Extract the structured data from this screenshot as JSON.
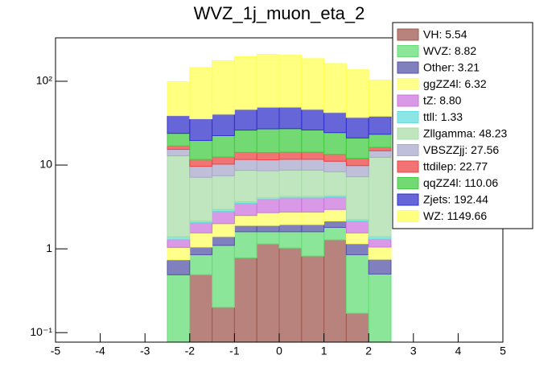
{
  "chart_data": {
    "type": "stacked-histogram",
    "title": "WVZ_1j_muon_eta_2",
    "bins": [
      -2.5,
      -2,
      -1.5,
      -1,
      -0.5,
      0,
      0.5,
      1,
      1.5,
      2,
      2.5
    ],
    "series": [
      {
        "name": "VH: 5.54",
        "color": "#a05a50",
        "values": [
          0,
          0.49,
          0.2,
          0.78,
          1.14,
          1.02,
          0.82,
          1.28,
          0.17,
          0
        ]
      },
      {
        "name": "WVZ: 8.82",
        "color": "#66dd77",
        "values": [
          0.49,
          0.36,
          0.9,
          0.82,
          0.46,
          0.58,
          0.78,
          0.52,
          0.68,
          0.5
        ]
      },
      {
        "name": "Other: 3.21",
        "color": "#5555aa",
        "values": [
          0.25,
          0.2,
          0.3,
          0.3,
          0.3,
          0.35,
          0.35,
          0.35,
          0.3,
          0.25
        ]
      },
      {
        "name": "ggZZ4l: 6.32",
        "color": "#ffff66",
        "values": [
          0.3,
          0.5,
          0.6,
          0.6,
          0.8,
          0.8,
          0.8,
          0.8,
          0.4,
          0.3
        ]
      },
      {
        "name": "tZ: 8.80",
        "color": "#cc77dd",
        "values": [
          0.25,
          0.5,
          0.8,
          1.0,
          1.2,
          1.3,
          1.3,
          1.2,
          0.6,
          0.25
        ]
      },
      {
        "name": "ttll: 1.33",
        "color": "#66dddd",
        "values": [
          0.1,
          0.1,
          0.15,
          0.15,
          0.15,
          0.15,
          0.15,
          0.15,
          0.1,
          0.1
        ]
      },
      {
        "name": "Zllgamma: 48.23",
        "color": "#aaddaa",
        "values": [
          11.5,
          5,
          4.5,
          5,
          4.5,
          4.5,
          4.5,
          4,
          5,
          11
        ]
      },
      {
        "name": "VBSZZjj: 27.56",
        "color": "#aaaacc",
        "values": [
          2.5,
          2.5,
          2.8,
          3.0,
          3.0,
          3.0,
          3.0,
          2.8,
          2.6,
          2.4
        ]
      },
      {
        "name": "ttdilep: 22.77",
        "color": "#ee4444",
        "values": [
          1.5,
          2,
          2.2,
          2.5,
          2.5,
          2.5,
          2.5,
          2.3,
          2.2,
          1.5
        ]
      },
      {
        "name": "qqZZ4l: 110.06",
        "color": "#44cc44",
        "values": [
          7,
          8,
          10,
          12,
          13,
          13,
          12,
          11,
          9,
          7
        ]
      },
      {
        "name": "Zjets: 192.44",
        "color": "#3333cc",
        "values": [
          15,
          16,
          18,
          20,
          22,
          22,
          20,
          18,
          16,
          15
        ]
      },
      {
        "name": "WZ: 1149.66",
        "color": "#ffff55",
        "values": [
          60,
          110,
          135,
          150,
          160,
          155,
          140,
          120,
          100,
          65
        ]
      }
    ],
    "xlim": [
      -5,
      5
    ],
    "xticks": [
      -5,
      -4,
      -3,
      -2,
      -1,
      0,
      1,
      2,
      3,
      4,
      5
    ],
    "ylim": [
      0.077,
      330
    ],
    "log_y": true,
    "yticks": [
      {
        "value": 0.1,
        "label": "10⁻¹"
      },
      1,
      10,
      {
        "value": 100,
        "label": "10²"
      }
    ],
    "legend": "top-right"
  }
}
